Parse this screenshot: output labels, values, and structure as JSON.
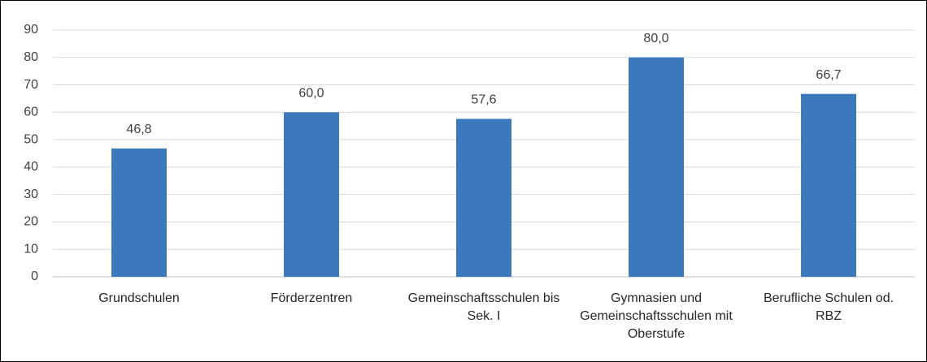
{
  "chart_data": {
    "type": "bar",
    "categories": [
      "Grundschulen",
      "Förderzentren",
      "Gemeinschaftsschulen bis Sek. I",
      "Gymnasien und Gemeinschaftsschulen mit Oberstufe",
      "Berufliche Schulen od. RBZ"
    ],
    "values": [
      46.8,
      60.0,
      57.6,
      80.0,
      66.7
    ],
    "value_labels": [
      "46,8",
      "60,0",
      "57,6",
      "80,0",
      "66,7"
    ],
    "color": "#3b78bc",
    "ylim": [
      0,
      90
    ],
    "yticks": [
      0,
      10,
      20,
      30,
      40,
      50,
      60,
      70,
      80,
      90
    ],
    "grid": true
  }
}
